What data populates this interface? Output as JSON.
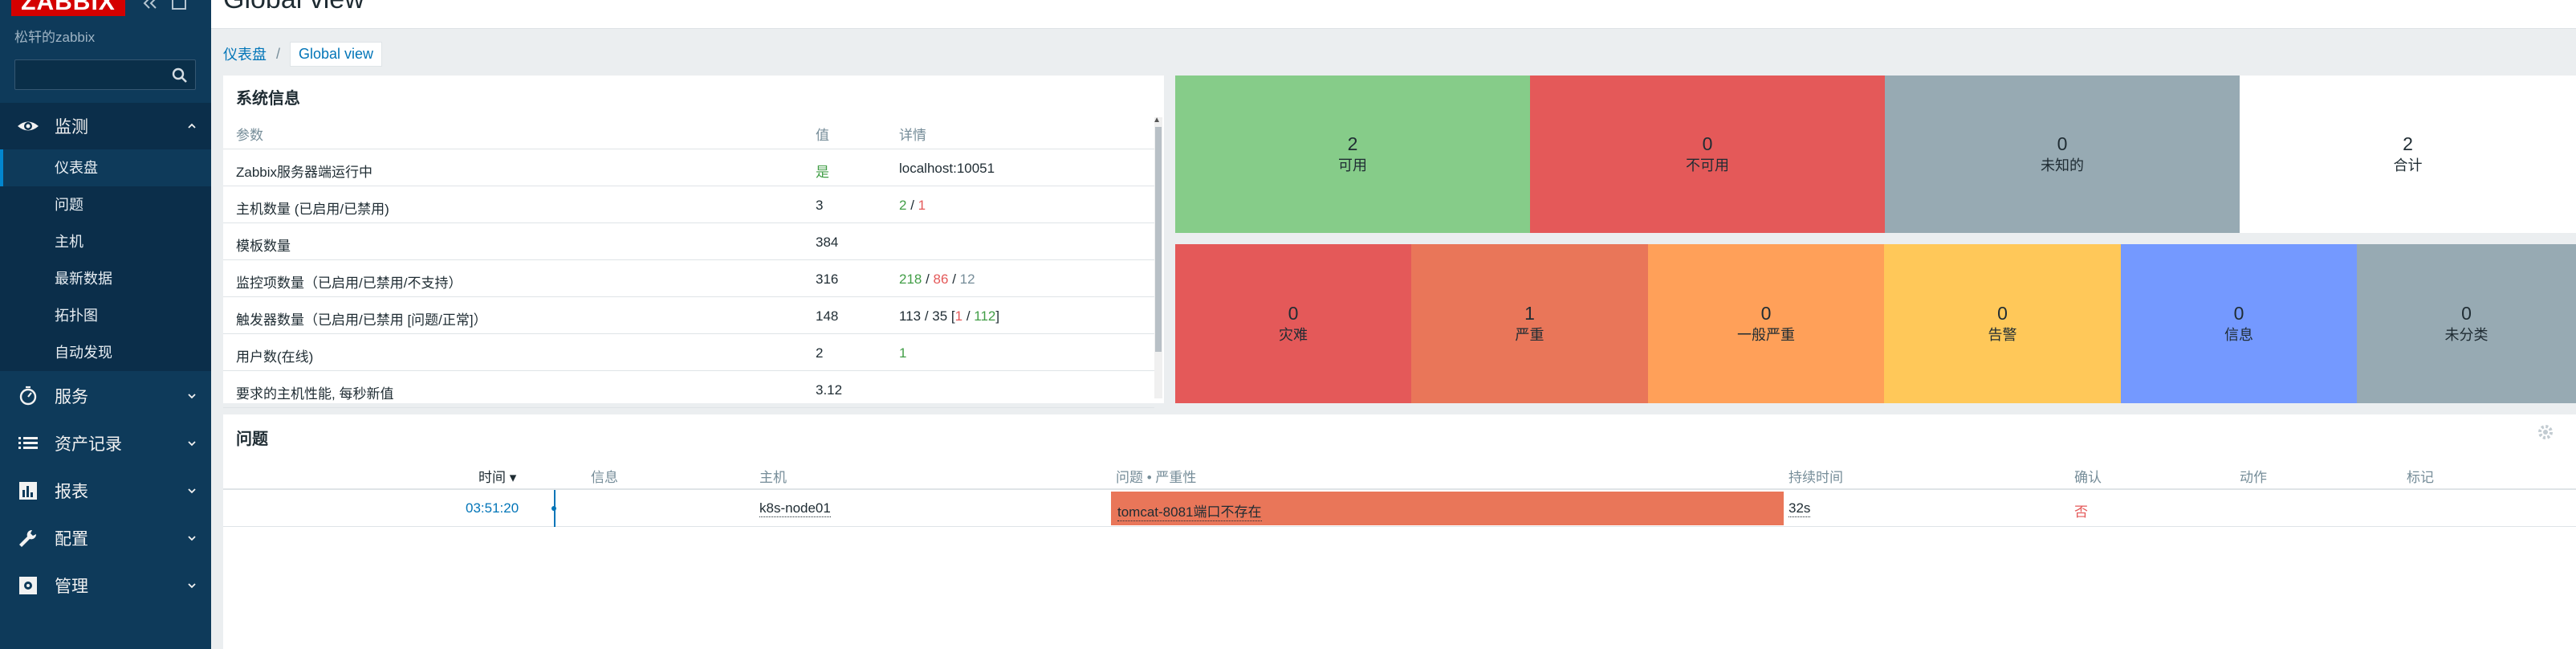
{
  "app": {
    "logo": "ZABBIX",
    "server_name": "松轩的zabbix",
    "search_placeholder": ""
  },
  "sidebar": {
    "menus": [
      {
        "label": "监测",
        "icon": "eye-icon",
        "expanded": true
      },
      {
        "label": "服务",
        "icon": "clock-icon"
      },
      {
        "label": "资产记录",
        "icon": "list-icon"
      },
      {
        "label": "报表",
        "icon": "report-icon"
      },
      {
        "label": "配置",
        "icon": "wrench-icon"
      },
      {
        "label": "管理",
        "icon": "admin-icon"
      }
    ],
    "submenu": [
      {
        "label": "仪表盘",
        "active": true
      },
      {
        "label": "问题"
      },
      {
        "label": "主机"
      },
      {
        "label": "最新数据"
      },
      {
        "label": "拓扑图"
      },
      {
        "label": "自动发现"
      }
    ]
  },
  "header": {
    "title": "Global view",
    "breadcrumb": {
      "parent": "仪表盘",
      "separator": "/",
      "current": "Global view"
    }
  },
  "sysinfo": {
    "title": "系统信息",
    "columns": [
      "参数",
      "值",
      "详情"
    ],
    "rows": [
      {
        "param": "Zabbix服务器端运行中",
        "value": "是",
        "details": "localhost:10051"
      },
      {
        "param": "主机数量 (已启用/已禁用)",
        "value": "3",
        "d1": "2",
        "d2": "1"
      },
      {
        "param": "模板数量",
        "value": "384"
      },
      {
        "param": "监控项数量（已启用/已禁用/不支持）",
        "value": "316",
        "d1": "218",
        "d2": "86",
        "d3": "12"
      },
      {
        "param": "触发器数量（已启用/已禁用 [问题/正常]）",
        "value": "148",
        "d_pre": "113 / 35 [",
        "d1": "1",
        "d_sep": " / ",
        "d2": "112",
        "d_post": "]"
      },
      {
        "param": "用户数(在线)",
        "value": "2",
        "d1": "1"
      },
      {
        "param": "要求的主机性能, 每秒新值",
        "value": "3.12"
      }
    ]
  },
  "host_availability": [
    {
      "count": "2",
      "label": "可用",
      "color": "#86cc89"
    },
    {
      "count": "0",
      "label": "不可用",
      "color": "#e45959"
    },
    {
      "count": "0",
      "label": "未知的",
      "color": "#97aab3"
    },
    {
      "count": "2",
      "label": "合计",
      "color": "#ffffff"
    }
  ],
  "severity": [
    {
      "count": "0",
      "label": "灾难",
      "color": "#e45959"
    },
    {
      "count": "1",
      "label": "严重",
      "color": "#e97659"
    },
    {
      "count": "0",
      "label": "一般严重",
      "color": "#ffa059"
    },
    {
      "count": "0",
      "label": "告警",
      "color": "#ffc859"
    },
    {
      "count": "0",
      "label": "信息",
      "color": "#7499ff"
    },
    {
      "count": "0",
      "label": "未分类",
      "color": "#97aab3"
    }
  ],
  "problems": {
    "title": "问题",
    "columns": {
      "time": "时间 ▾",
      "info": "信息",
      "host": "主机",
      "problem": "问题 • 严重性",
      "duration": "持续时间",
      "ack": "确认",
      "actions": "动作",
      "tags": "标记"
    },
    "rows": [
      {
        "time": "03:51:20",
        "host": "k8s-node01",
        "problem": "tomcat-8081端口不存在",
        "duration": "32s",
        "ack": "否"
      }
    ]
  }
}
